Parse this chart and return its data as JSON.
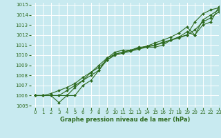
{
  "title": "Graphe pression niveau de la mer (hPa)",
  "bg_color": "#c8eaf0",
  "grid_color": "#ffffff",
  "line_color": "#2d6a1e",
  "xlim": [
    -0.5,
    23
  ],
  "ylim": [
    1004.8,
    1015.2
  ],
  "xticks": [
    0,
    1,
    2,
    3,
    4,
    5,
    6,
    7,
    8,
    9,
    10,
    11,
    12,
    13,
    14,
    15,
    16,
    17,
    18,
    19,
    20,
    21,
    22,
    23
  ],
  "yticks": [
    1005,
    1006,
    1007,
    1008,
    1009,
    1010,
    1011,
    1012,
    1013,
    1014,
    1015
  ],
  "series": [
    {
      "x": [
        0,
        1,
        2,
        3,
        4,
        5,
        6,
        7,
        8,
        9,
        10,
        11,
        12,
        13,
        14,
        15,
        16,
        17,
        18,
        19,
        20,
        21,
        22,
        23
      ],
      "y": [
        1006.0,
        1006.0,
        1006.0,
        1006.0,
        1006.0,
        1006.0,
        1007.0,
        1007.5,
        1008.5,
        1009.7,
        1010.3,
        1010.5,
        1010.5,
        1010.8,
        1010.8,
        1010.8,
        1011.0,
        1011.5,
        1011.7,
        1012.0,
        1013.3,
        1014.1,
        1014.5,
        1014.7
      ]
    },
    {
      "x": [
        0,
        1,
        2,
        3,
        4,
        5,
        6,
        7,
        8,
        9,
        10,
        11,
        12,
        13,
        14,
        15,
        16,
        17,
        18,
        19,
        20,
        21,
        22,
        23
      ],
      "y": [
        1006.0,
        1006.0,
        1006.0,
        1005.3,
        1006.0,
        1006.8,
        1007.5,
        1008.3,
        1008.8,
        1009.5,
        1010.1,
        1010.3,
        1010.5,
        1010.7,
        1010.9,
        1011.0,
        1011.3,
        1011.5,
        1011.8,
        1012.3,
        1012.0,
        1013.5,
        1014.0,
        1014.5
      ]
    },
    {
      "x": [
        0,
        1,
        2,
        3,
        4,
        5,
        6,
        7,
        8,
        9,
        10,
        11,
        12,
        13,
        14,
        15,
        16,
        17,
        18,
        19,
        20,
        21,
        22,
        23
      ],
      "y": [
        1006.0,
        1006.0,
        1006.0,
        1006.0,
        1006.5,
        1007.0,
        1007.5,
        1008.0,
        1008.5,
        1009.5,
        1010.0,
        1010.2,
        1010.4,
        1010.6,
        1010.8,
        1011.0,
        1011.2,
        1011.5,
        1011.8,
        1012.0,
        1012.5,
        1013.3,
        1013.7,
        1014.3
      ]
    },
    {
      "x": [
        0,
        1,
        2,
        3,
        4,
        5,
        6,
        7,
        8,
        9,
        10,
        11,
        12,
        13,
        14,
        15,
        16,
        17,
        18,
        19,
        20,
        21,
        22,
        23
      ],
      "y": [
        1006.0,
        1006.0,
        1006.2,
        1006.5,
        1006.8,
        1007.2,
        1007.8,
        1008.3,
        1009.0,
        1009.7,
        1010.1,
        1010.3,
        1010.5,
        1010.7,
        1010.9,
        1011.2,
        1011.5,
        1011.8,
        1012.2,
        1012.8,
        1012.0,
        1013.0,
        1013.3,
        1014.8
      ]
    }
  ]
}
